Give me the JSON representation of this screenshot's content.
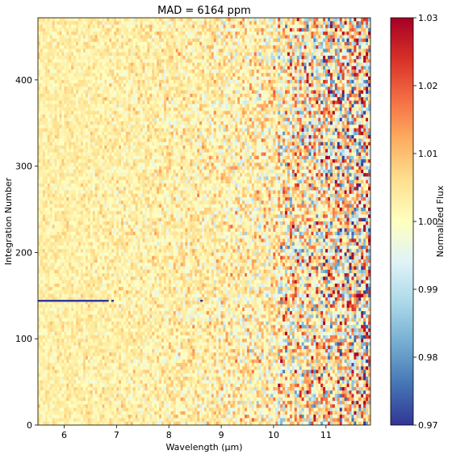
{
  "chart_data": {
    "type": "heatmap",
    "title": "MAD = 6164 ppm",
    "xlabel": "Wavelength (μm)",
    "ylabel": "Integration Number",
    "xlim": [
      5.5,
      11.85
    ],
    "ylim": [
      0,
      472
    ],
    "x_ticks": [
      "6",
      "7",
      "8",
      "9",
      "10",
      "11"
    ],
    "x_tick_values": [
      6,
      7,
      8,
      9,
      10,
      11
    ],
    "y_ticks": [
      "0",
      "100",
      "200",
      "300",
      "400"
    ],
    "y_tick_values": [
      0,
      100,
      200,
      300,
      400
    ],
    "colorbar": {
      "label": "Normalized Flux",
      "range": [
        0.97,
        1.03
      ],
      "ticks": [
        "0.97",
        "0.98",
        "0.99",
        "1.00",
        "1.01",
        "1.02",
        "1.03"
      ],
      "tick_values": [
        0.97,
        0.98,
        0.99,
        1.0,
        1.01,
        1.02,
        1.03
      ],
      "colormap": "RdYlBu_r"
    },
    "features": {
      "baseline_flux": 1.003,
      "noise_increases_with_wavelength": true,
      "low_flux_row": {
        "integration": 144,
        "flux": 0.97,
        "segments_um": [
          [
            5.5,
            6.85
          ],
          [
            6.9,
            6.95
          ],
          [
            8.6,
            8.65
          ]
        ]
      }
    }
  }
}
